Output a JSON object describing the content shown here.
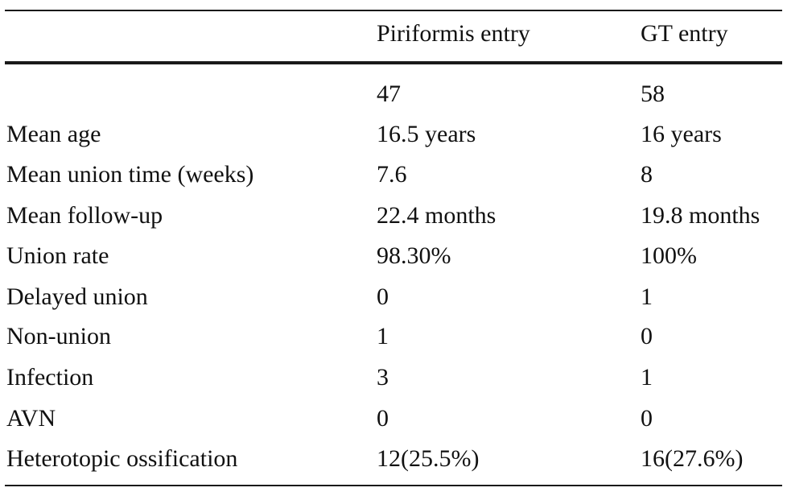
{
  "table": {
    "header": [
      "",
      "Piriformis entry",
      "GT entry"
    ],
    "rows": [
      [
        "",
        "47",
        "58"
      ],
      [
        "Mean age",
        "16.5 years",
        "16 years"
      ],
      [
        "Mean union time (weeks)",
        "7.6",
        "8"
      ],
      [
        "Mean follow-up",
        "22.4 months",
        "19.8 months"
      ],
      [
        "Union rate",
        "98.30%",
        "100%"
      ],
      [
        "Delayed union",
        "0",
        "1"
      ],
      [
        "Non-union",
        "1",
        "0"
      ],
      [
        "Infection",
        "3",
        "1"
      ],
      [
        "AVN",
        "0",
        "0"
      ],
      [
        "Heterotopic ossification",
        "12(25.5%)",
        "16(27.6%)"
      ]
    ]
  }
}
